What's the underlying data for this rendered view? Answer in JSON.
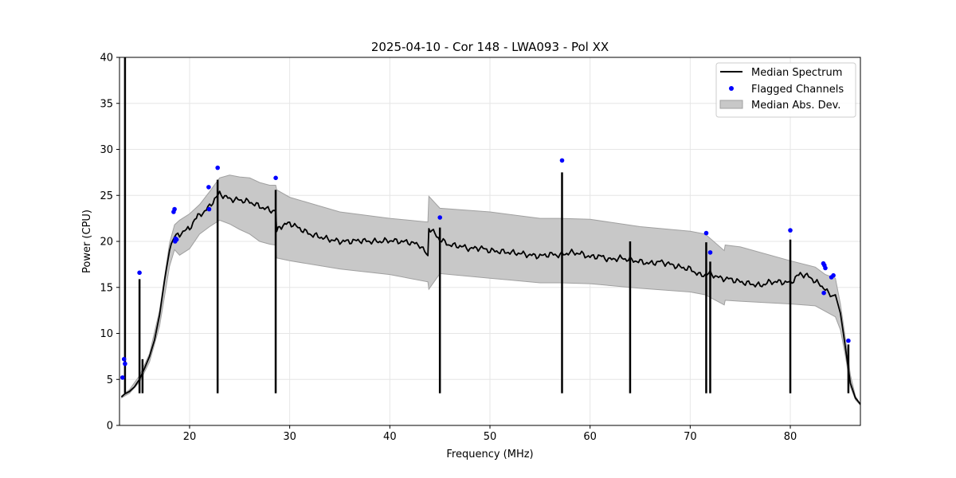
{
  "chart_data": {
    "type": "line",
    "title": "2025-04-10 - Cor 148 - LWA093 - Pol XX",
    "xlabel": "Frequency (MHz)",
    "ylabel": "Power (CPU)",
    "xlim": [
      13,
      87
    ],
    "ylim": [
      0,
      40
    ],
    "xticks": [
      20,
      30,
      40,
      50,
      60,
      70,
      80
    ],
    "yticks": [
      0,
      5,
      10,
      15,
      20,
      25,
      30,
      35,
      40
    ],
    "grid": true,
    "legend_position": "top-right",
    "colors": {
      "median": "#000000",
      "flagged": "#0000ff",
      "band_fill": "#c8c8c8",
      "band_edge": "#a0a0a0"
    },
    "series": [
      {
        "name": "Median Spectrum",
        "kind": "line",
        "x": [
          13.2,
          13.5,
          14.0,
          14.5,
          15.0,
          15.5,
          16.0,
          16.5,
          17.0,
          17.5,
          18.0,
          18.5,
          19.0,
          19.5,
          20.0,
          20.5,
          21.0,
          21.5,
          22.0,
          22.5,
          23.0,
          24.0,
          25.0,
          26.0,
          27.0,
          28.0,
          28.6,
          28.7,
          29.0,
          30.0,
          31.0,
          32.0,
          33.0,
          34.0,
          35.0,
          36.0,
          37.0,
          38.0,
          39.0,
          40.0,
          41.0,
          42.0,
          43.0,
          43.8,
          43.9,
          44.5,
          45.0,
          46.0,
          47.0,
          48.0,
          49.0,
          50.0,
          51.0,
          52.0,
          53.0,
          54.0,
          55.0,
          56.0,
          57.0,
          58.0,
          59.0,
          60.0,
          61.0,
          62.0,
          63.0,
          64.0,
          65.0,
          66.0,
          67.0,
          68.0,
          69.0,
          70.0,
          71.0,
          72.0,
          73.0,
          74.0,
          75.0,
          76.0,
          77.0,
          78.0,
          79.0,
          80.0,
          81.0,
          82.0,
          82.5,
          83.0,
          83.5,
          84.0,
          84.5,
          85.0,
          85.5,
          86.0,
          86.5,
          87.0
        ],
        "values": [
          3.1,
          3.4,
          3.7,
          4.2,
          5.0,
          6.2,
          7.5,
          9.3,
          12.0,
          15.8,
          19.0,
          20.8,
          20.5,
          21.4,
          21.2,
          22.5,
          22.8,
          23.3,
          23.8,
          24.6,
          25.2,
          24.6,
          24.5,
          24.3,
          23.8,
          23.4,
          23.3,
          21.0,
          21.6,
          22.0,
          21.4,
          20.8,
          20.5,
          20.2,
          20.0,
          20.0,
          20.1,
          20.0,
          20.0,
          20.1,
          20.0,
          19.9,
          19.6,
          18.4,
          21.5,
          20.8,
          20.2,
          19.6,
          19.5,
          19.2,
          19.3,
          19.0,
          18.9,
          18.8,
          18.7,
          18.5,
          18.4,
          18.6,
          18.5,
          18.8,
          18.7,
          18.3,
          18.4,
          18.0,
          18.2,
          18.0,
          17.8,
          17.6,
          17.8,
          17.5,
          17.2,
          17.0,
          16.3,
          16.5,
          16.0,
          15.9,
          15.6,
          15.4,
          15.2,
          15.6,
          15.6,
          15.5,
          16.5,
          16.1,
          15.6,
          15.3,
          14.8,
          14.0,
          14.2,
          12.2,
          8.5,
          4.6,
          3.0,
          2.3
        ]
      },
      {
        "name": "Flagged Channels",
        "kind": "scatter",
        "x": [
          13.3,
          13.45,
          13.55,
          15.0,
          18.4,
          18.5,
          18.55,
          18.6,
          18.7,
          21.9,
          21.95,
          22.8,
          28.6,
          45.0,
          57.2,
          71.6,
          72.0,
          80.0,
          83.3,
          83.4,
          83.5,
          83.35,
          84.1,
          84.3,
          85.8
        ],
        "values": [
          5.2,
          7.2,
          6.7,
          16.6,
          23.2,
          23.5,
          20.0,
          20.3,
          20.2,
          25.9,
          23.5,
          28.0,
          26.9,
          22.6,
          28.8,
          20.9,
          18.8,
          21.2,
          17.6,
          17.4,
          17.1,
          14.4,
          16.1,
          16.3,
          9.2
        ]
      },
      {
        "name": "Median Abs. Dev.",
        "kind": "band",
        "x": [
          13.2,
          14.0,
          15.0,
          16.0,
          17.0,
          18.0,
          18.5,
          19.0,
          20.0,
          21.0,
          22.0,
          23.0,
          24.0,
          25.0,
          26.0,
          27.0,
          28.0,
          28.6,
          28.7,
          30.0,
          35.0,
          40.0,
          43.8,
          43.9,
          45.0,
          50.0,
          55.0,
          57.0,
          60.0,
          65.0,
          70.0,
          71.5,
          73.4,
          73.5,
          75.0,
          80.0,
          82.5,
          83.5,
          84.5,
          85.0,
          85.5,
          86.0,
          86.5,
          87.0
        ],
        "upper": [
          3.2,
          3.9,
          5.4,
          7.8,
          12.5,
          19.8,
          21.8,
          22.3,
          23.0,
          24.0,
          25.4,
          26.9,
          27.2,
          27.0,
          26.9,
          26.4,
          26.1,
          26.1,
          25.6,
          24.8,
          23.2,
          22.5,
          22.1,
          24.9,
          23.6,
          23.2,
          22.5,
          22.5,
          22.4,
          21.6,
          21.1,
          20.8,
          19.0,
          19.6,
          19.4,
          17.9,
          17.2,
          16.4,
          16.0,
          13.2,
          9.5,
          5.5,
          3.2,
          2.3
        ],
        "lower": [
          3.0,
          3.5,
          4.7,
          6.9,
          10.8,
          17.3,
          19.1,
          18.5,
          19.2,
          20.8,
          21.6,
          22.3,
          21.9,
          21.3,
          20.8,
          20.0,
          19.7,
          19.6,
          18.2,
          17.9,
          17.0,
          16.4,
          15.6,
          14.8,
          16.5,
          16.0,
          15.5,
          15.5,
          15.4,
          14.9,
          14.5,
          14.2,
          13.1,
          13.6,
          13.5,
          13.2,
          13.0,
          12.4,
          11.8,
          10.4,
          7.6,
          4.2,
          2.8,
          2.2
        ]
      }
    ],
    "spikes": [
      {
        "x": 13.55,
        "value": 40.0
      },
      {
        "x": 15.0,
        "value": 15.9
      },
      {
        "x": 15.3,
        "value": 7.2
      },
      {
        "x": 22.8,
        "value": 26.7
      },
      {
        "x": 28.6,
        "value": 25.6
      },
      {
        "x": 45.0,
        "value": 21.5
      },
      {
        "x": 57.2,
        "value": 27.5
      },
      {
        "x": 64.0,
        "value": 20.0
      },
      {
        "x": 71.6,
        "value": 19.9
      },
      {
        "x": 72.0,
        "value": 17.8
      },
      {
        "x": 80.0,
        "value": 20.2
      },
      {
        "x": 85.8,
        "value": 8.8
      }
    ]
  }
}
